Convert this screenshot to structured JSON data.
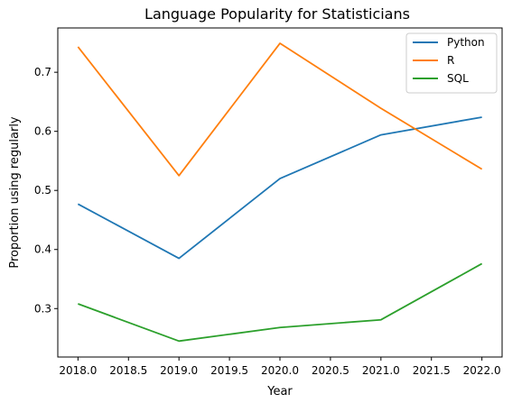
{
  "chart_data": {
    "type": "line",
    "title": "Language Popularity for Statisticians",
    "xlabel": "Year",
    "ylabel": "Proportion using regularly",
    "xlim": [
      2017.8,
      2022.2
    ],
    "ylim": [
      0.218,
      0.775
    ],
    "xticks": [
      2018.0,
      2018.5,
      2019.0,
      2019.5,
      2020.0,
      2020.5,
      2021.0,
      2021.5,
      2022.0
    ],
    "xtick_labels": [
      "2018.0",
      "2018.5",
      "2019.0",
      "2019.5",
      "2020.0",
      "2020.5",
      "2021.0",
      "2021.5",
      "2022.0"
    ],
    "yticks": [
      0.3,
      0.4,
      0.5,
      0.6,
      0.7
    ],
    "ytick_labels": [
      "0.3",
      "0.4",
      "0.5",
      "0.6",
      "0.7"
    ],
    "x": [
      2018,
      2019,
      2020,
      2021,
      2022
    ],
    "series": [
      {
        "name": "Python",
        "color": "#1f77b4",
        "values": [
          0.477,
          0.385,
          0.52,
          0.594,
          0.624
        ]
      },
      {
        "name": "R",
        "color": "#ff7f0e",
        "values": [
          0.743,
          0.525,
          0.749,
          0.639,
          0.536
        ]
      },
      {
        "name": "SQL",
        "color": "#2ca02c",
        "values": [
          0.308,
          0.245,
          0.268,
          0.281,
          0.376
        ]
      }
    ],
    "grid": false,
    "legend_position": "upper right"
  }
}
